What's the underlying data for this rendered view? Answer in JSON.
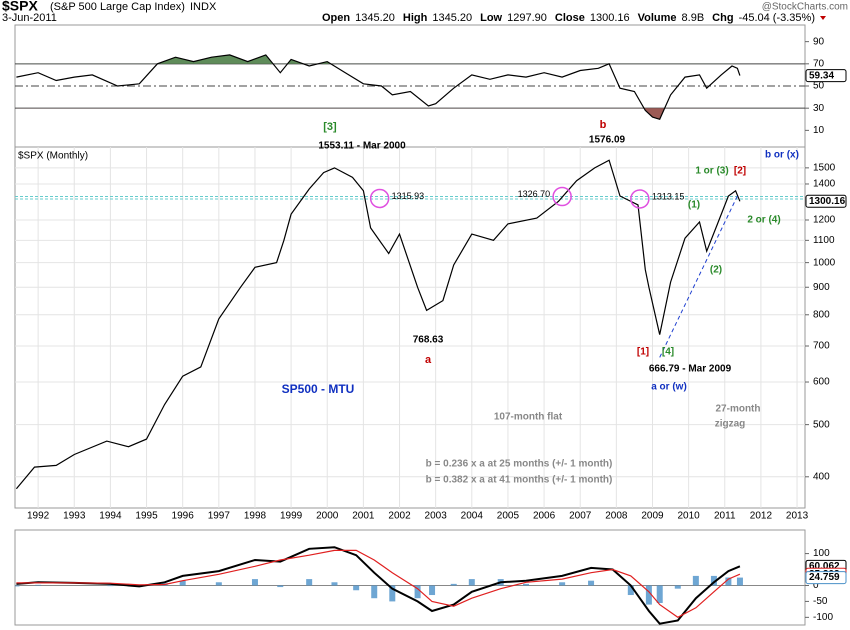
{
  "header": {
    "symbol": "$SPX",
    "name": "(S&P 500 Large Cap Index)",
    "exchange": "INDX",
    "date": "3-Jun-2011",
    "watermark": "@StockCharts.com",
    "fields": [
      {
        "label": "Open",
        "value": "1345.20"
      },
      {
        "label": "High",
        "value": "1345.20"
      },
      {
        "label": "Low",
        "value": "1297.90"
      },
      {
        "label": "Close",
        "value": "1300.16"
      },
      {
        "label": "Volume",
        "value": "8.9B"
      },
      {
        "label": "Chg",
        "value": "-45.04 (-3.35%)"
      }
    ]
  },
  "chart_data": [
    {
      "type": "line",
      "color": "#000000",
      "xlim": [
        1991.36,
        2013.22
      ],
      "ylim": [
        -5,
        105
      ],
      "yticks": [
        10,
        30,
        50,
        70,
        90
      ],
      "levels": [
        70,
        50,
        30
      ],
      "overbought_color": "#5f8c5a",
      "oversold_color": "#9c5a55",
      "x": [
        1991.4,
        1992.0,
        1992.5,
        1993.0,
        1993.5,
        1994.2,
        1994.8,
        1995.3,
        1995.8,
        1996.3,
        1996.8,
        1997.3,
        1997.8,
        1998.3,
        1998.7,
        1999.0,
        1999.5,
        2000.0,
        2000.5,
        2001.0,
        2001.5,
        2001.8,
        2002.3,
        2002.8,
        2003.0,
        2003.5,
        2004.0,
        2004.5,
        2005.0,
        2005.5,
        2006.0,
        2006.5,
        2007.0,
        2007.5,
        2007.8,
        2008.1,
        2008.5,
        2008.8,
        2009.0,
        2009.2,
        2009.5,
        2009.9,
        2010.3,
        2010.5,
        2010.9,
        2011.2,
        2011.35,
        2011.42
      ],
      "values": [
        58,
        62,
        55,
        58,
        60,
        50,
        52,
        70,
        76,
        72,
        76,
        78,
        72,
        78,
        62,
        74,
        68,
        72,
        62,
        52,
        50,
        42,
        45,
        32,
        34,
        48,
        60,
        56,
        60,
        58,
        62,
        58,
        64,
        66,
        70,
        48,
        45,
        28,
        22,
        20,
        42,
        58,
        60,
        48,
        60,
        68,
        66,
        59.34
      ]
    },
    {
      "type": "line",
      "title": "$SPX (Monthly)",
      "color": "#000000",
      "log_scale": true,
      "grid": true,
      "xlim": [
        1991.36,
        2013.22
      ],
      "xticks": [
        1992,
        1993,
        1994,
        1995,
        1996,
        1997,
        1998,
        1999,
        2000,
        2001,
        2002,
        2003,
        2004,
        2005,
        2006,
        2007,
        2008,
        2009,
        2010,
        2011,
        2012,
        2013
      ],
      "ylim": [
        350,
        1640
      ],
      "yticks": [
        400,
        500,
        600,
        700,
        800,
        900,
        1000,
        1100,
        1200,
        1400,
        1500
      ],
      "x": [
        1991.4,
        1991.9,
        1992.5,
        1993.0,
        1993.9,
        1994.5,
        1995.0,
        1995.5,
        1996.0,
        1996.5,
        1997.0,
        1997.6,
        1998.0,
        1998.6,
        1998.8,
        1999.0,
        1999.5,
        1999.9,
        2000.2,
        2000.7,
        2001.0,
        2001.2,
        2001.7,
        2002.0,
        2002.5,
        2002.75,
        2003.2,
        2003.5,
        2004.0,
        2004.6,
        2005.0,
        2005.8,
        2006.4,
        2006.9,
        2007.4,
        2007.8,
        2008.1,
        2008.6,
        2008.8,
        2008.9,
        2009.2,
        2009.5,
        2009.9,
        2010.3,
        2010.5,
        2010.8,
        2011.1,
        2011.3,
        2011.42
      ],
      "values": [
        380,
        417,
        420,
        440,
        466,
        455,
        470,
        545,
        615,
        640,
        786,
        900,
        980,
        1000,
        1100,
        1230,
        1370,
        1470,
        1500,
        1440,
        1360,
        1160,
        1040,
        1130,
        900,
        815,
        850,
        990,
        1130,
        1100,
        1180,
        1210,
        1300,
        1420,
        1500,
        1550,
        1330,
        1280,
        970,
        900,
        735,
        920,
        1110,
        1190,
        1050,
        1180,
        1330,
        1360,
        1300.16
      ],
      "marked_levels": [
        {
          "x": 2001.45,
          "value": 1315.93,
          "label": "1315.93"
        },
        {
          "x": 2006.5,
          "value": 1326.7,
          "label": "1326.70"
        },
        {
          "x": 2008.65,
          "value": 1313.15,
          "label": "1313.15"
        }
      ],
      "trendline": {
        "x": [
          2009.2,
          2011.35
        ],
        "values": [
          666.79,
          1330
        ]
      },
      "annotations": [
        "[3]",
        "1553.11 - Mar 2000",
        "b",
        "1576.09",
        "b or (x)",
        "1 or (3)",
        "[2]",
        "(1)",
        "2 or (4)",
        "(2)",
        "768.63",
        "a",
        "[1]",
        "[4]",
        "666.79 - Mar 2009",
        "a or (w)",
        "SP500 - MTU",
        "107-month flat",
        "27-month",
        "zigzag",
        "b = 0.236 x a at 25 months (+/- 1 month)",
        "b = 0.382 x a at 41 months (+/- 1 month)"
      ]
    },
    {
      "type": "macd",
      "xlim": [
        1991.36,
        2013.22
      ],
      "ylim": [
        -124,
        174
      ],
      "yticks": [
        100,
        50,
        0,
        -50,
        -100
      ],
      "x": [
        1991.4,
        1992.0,
        1993.0,
        1994.0,
        1994.8,
        1995.5,
        1996.0,
        1997.0,
        1998.0,
        1998.7,
        1999.5,
        2000.2,
        2000.8,
        2001.3,
        2001.8,
        2002.5,
        2002.9,
        2003.5,
        2004.0,
        2004.8,
        2005.5,
        2006.5,
        2007.3,
        2007.9,
        2008.4,
        2008.9,
        2009.2,
        2009.7,
        2010.2,
        2010.7,
        2011.1,
        2011.42
      ],
      "series": [
        {
          "style": "line",
          "color": "#000000",
          "values": [
            5,
            10,
            8,
            5,
            -3,
            10,
            30,
            45,
            80,
            75,
            115,
            120,
            95,
            40,
            -10,
            -50,
            -80,
            -60,
            -20,
            10,
            15,
            30,
            55,
            50,
            0,
            -80,
            -120,
            -110,
            -40,
            10,
            45,
            60.062
          ]
        },
        {
          "style": "line",
          "color": "#e02020",
          "values": [
            8,
            8,
            8,
            7,
            2,
            3,
            15,
            35,
            60,
            80,
            95,
            110,
            110,
            80,
            40,
            -10,
            -50,
            -65,
            -40,
            -10,
            10,
            20,
            40,
            50,
            30,
            -20,
            -60,
            -100,
            -70,
            -20,
            20,
            35.303
          ]
        },
        {
          "style": "bar",
          "color": "#4a90c8",
          "values": [
            -3,
            2,
            0,
            -2,
            -5,
            7,
            15,
            10,
            20,
            -5,
            20,
            10,
            -15,
            -40,
            -50,
            -40,
            -30,
            5,
            20,
            20,
            5,
            10,
            15,
            0,
            -30,
            -60,
            -55,
            -10,
            30,
            30,
            25,
            24.759
          ]
        }
      ]
    }
  ]
}
